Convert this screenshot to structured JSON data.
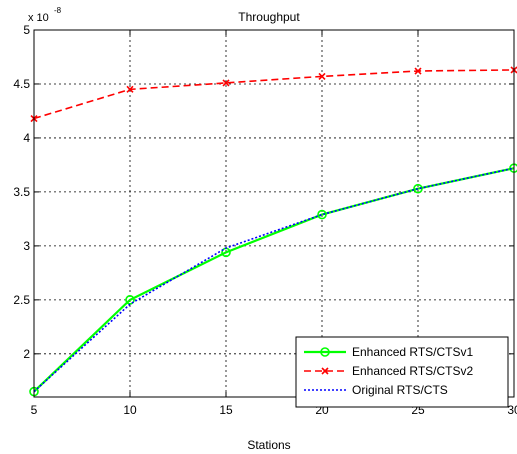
{
  "chart_data": {
    "type": "line",
    "title": "Throughput",
    "xlabel": "Stations",
    "ylabel": "",
    "y_multiplier_label": {
      "base": "x 10",
      "exponent": "-8"
    },
    "x": [
      5,
      10,
      15,
      20,
      25,
      30
    ],
    "x_ticks": [
      "5",
      "10",
      "15",
      "20",
      "25",
      "30"
    ],
    "y_ticks": [
      "2",
      "2.5",
      "3",
      "3.5",
      "4",
      "4.5",
      "5"
    ],
    "xlim": [
      5,
      30
    ],
    "ylim": [
      1.6,
      5
    ],
    "grid": true,
    "legend_position": "bottom-right",
    "series": [
      {
        "name": "Enhanced RTS/CTSv1",
        "values": [
          1.65,
          2.5,
          2.94,
          3.29,
          3.53,
          3.72
        ],
        "color": "#00ff00",
        "marker": "circle",
        "line": "solid"
      },
      {
        "name": "Enhanced RTS/CTSv2",
        "values": [
          4.18,
          4.45,
          4.51,
          4.57,
          4.62,
          4.63
        ],
        "color": "#ff0000",
        "marker": "x",
        "line": "dashed"
      },
      {
        "name": "Original RTS/CTS",
        "values": [
          1.65,
          2.46,
          2.98,
          3.29,
          3.53,
          3.72
        ],
        "color": "#0000ff",
        "marker": "none",
        "line": "dotted"
      }
    ]
  }
}
